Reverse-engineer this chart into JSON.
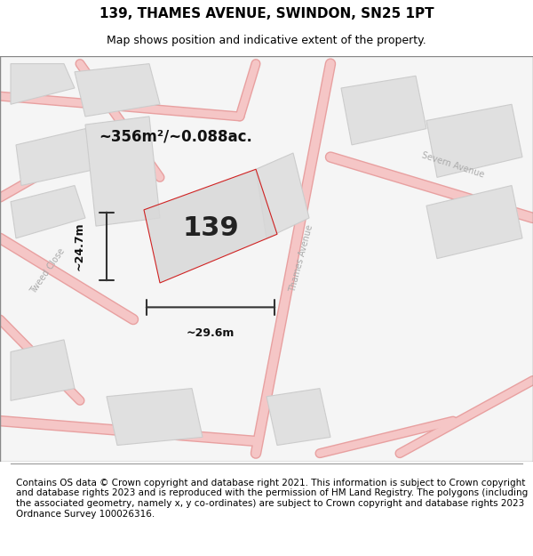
{
  "title": "139, THAMES AVENUE, SWINDON, SN25 1PT",
  "subtitle": "Map shows position and indicative extent of the property.",
  "footer": "Contains OS data © Crown copyright and database right 2021. This information is subject to Crown copyright and database rights 2023 and is reproduced with the permission of HM Land Registry. The polygons (including the associated geometry, namely x, y co-ordinates) are subject to Crown copyright and database rights 2023 Ordnance Survey 100026316.",
  "background_color": "#ffffff",
  "map_bg_color": "#f7f7f7",
  "road_color": "#f5c6c6",
  "road_edge_color": "#e8a0a0",
  "block_color": "#e0e0e0",
  "block_edge_color": "#cccccc",
  "property_fill": "#d8d8d8",
  "property_edge_color": "#cc0000",
  "property_alpha": 0.5,
  "street_label_color": "#aaaaaa",
  "dimension_color": "#333333",
  "area_label": "~356m²/~0.088ac.",
  "number_label": "139",
  "width_label": "~29.6m",
  "height_label": "~24.7m",
  "title_fontsize": 11,
  "subtitle_fontsize": 9,
  "footer_fontsize": 7.5
}
